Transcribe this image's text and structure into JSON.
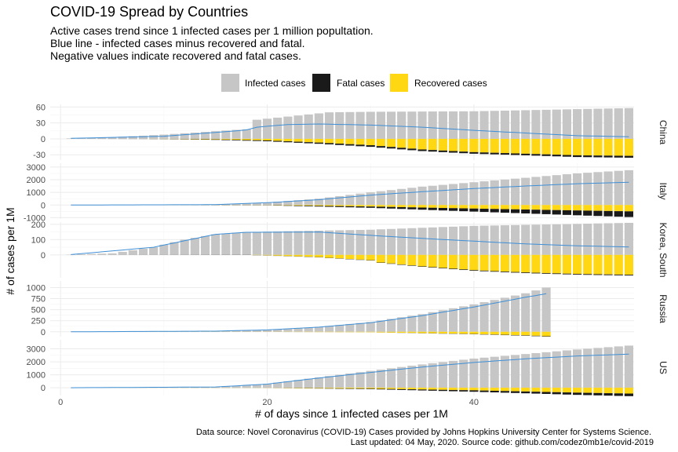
{
  "chart_data": {
    "type": "bar",
    "title": "COVID-19 Spread by Countries",
    "subtitle": [
      "Active cases trend since 1 infected cases per 1 million popultation.",
      "Blue line - infected cases minus recovered and fatal.",
      "Negative values indicate recovered and fatal cases."
    ],
    "xlabel": "# of days since 1 infected cases per 1M",
    "ylabel": "# of cases per 1M",
    "caption": [
      "Data source: Novel Coronavirus (COVID-19) Cases provided by Johns Hopkins University Center for Systems Science.",
      "Last updated: 04 May, 2020. Source code: github.com/codez0mb1e/covid-2019"
    ],
    "legend": {
      "position": "top",
      "entries": [
        {
          "name": "Infected cases",
          "color": "#c6c6c6"
        },
        {
          "name": "Fatal cases",
          "color": "#1a1a1a"
        },
        {
          "name": "Recovered cases",
          "color": "#ffd712"
        }
      ]
    },
    "line_color": "#3e8fd6",
    "x_ticks": [
      0,
      20,
      40
    ],
    "xlim": [
      -1,
      55.5
    ],
    "grid": true,
    "panels": [
      {
        "name": "China",
        "days": 55,
        "ylim": [
          -40,
          65
        ],
        "y_ticks": [
          -30,
          0,
          30,
          60
        ],
        "infected_points": [
          [
            1,
            1
          ],
          [
            5,
            3
          ],
          [
            10,
            8
          ],
          [
            17,
            17
          ],
          [
            18,
            18
          ],
          [
            19,
            36
          ],
          [
            26,
            50
          ],
          [
            30,
            51
          ],
          [
            40,
            52
          ],
          [
            55,
            58
          ]
        ],
        "fatal_points": [
          [
            1,
            0
          ],
          [
            10,
            -0.3
          ],
          [
            20,
            -1.5
          ],
          [
            30,
            -3
          ],
          [
            45,
            -3
          ],
          [
            55,
            -3.5
          ]
        ],
        "recovered_points": [
          [
            1,
            0
          ],
          [
            8,
            0
          ],
          [
            15,
            -1
          ],
          [
            20,
            -3
          ],
          [
            25,
            -7
          ],
          [
            30,
            -12
          ],
          [
            35,
            -20
          ],
          [
            40,
            -25
          ],
          [
            45,
            -28
          ],
          [
            50,
            -31
          ],
          [
            55,
            -32
          ]
        ],
        "active_points": [
          [
            1,
            1
          ],
          [
            10,
            5
          ],
          [
            17,
            15
          ],
          [
            18,
            17
          ],
          [
            19,
            22
          ],
          [
            22,
            27
          ],
          [
            25,
            28
          ],
          [
            30,
            26
          ],
          [
            35,
            22
          ],
          [
            40,
            16
          ],
          [
            45,
            11
          ],
          [
            50,
            6
          ],
          [
            55,
            4
          ]
        ]
      },
      {
        "name": "Italy",
        "days": 55,
        "ylim": [
          -1100,
          3300
        ],
        "y_ticks": [
          -1000,
          0,
          1000,
          2000,
          3000
        ],
        "infected_points": [
          [
            1,
            0.05
          ],
          [
            10,
            5
          ],
          [
            15,
            30
          ],
          [
            20,
            200
          ],
          [
            25,
            500
          ],
          [
            30,
            1000
          ],
          [
            35,
            1450
          ],
          [
            40,
            1800
          ],
          [
            45,
            2150
          ],
          [
            50,
            2500
          ],
          [
            55,
            2750
          ]
        ],
        "fatal_points": [
          [
            1,
            0
          ],
          [
            20,
            -15
          ],
          [
            30,
            -100
          ],
          [
            40,
            -240
          ],
          [
            50,
            -380
          ],
          [
            55,
            -450
          ]
        ],
        "recovered_points": [
          [
            1,
            0
          ],
          [
            20,
            -10
          ],
          [
            30,
            -120
          ],
          [
            40,
            -280
          ],
          [
            50,
            -430
          ],
          [
            55,
            -500
          ]
        ],
        "active_points": [
          [
            1,
            0.05
          ],
          [
            15,
            28
          ],
          [
            20,
            180
          ],
          [
            25,
            420
          ],
          [
            30,
            780
          ],
          [
            35,
            1050
          ],
          [
            40,
            1300
          ],
          [
            45,
            1500
          ],
          [
            50,
            1680
          ],
          [
            55,
            1800
          ]
        ]
      },
      {
        "name": "Korea, South",
        "days": 55,
        "ylim": [
          -150,
          215
        ],
        "y_ticks": [
          0,
          100,
          200
        ],
        "infected_points": [
          [
            1,
            2
          ],
          [
            5,
            10
          ],
          [
            9,
            50
          ],
          [
            12,
            100
          ],
          [
            15,
            135
          ],
          [
            18,
            150
          ],
          [
            30,
            165
          ],
          [
            40,
            190
          ],
          [
            55,
            210
          ]
        ],
        "fatal_points": [
          [
            1,
            0
          ],
          [
            20,
            -1
          ],
          [
            30,
            -2
          ],
          [
            40,
            -4
          ],
          [
            50,
            -4.5
          ],
          [
            55,
            -5
          ]
        ],
        "recovered_points": [
          [
            1,
            0
          ],
          [
            18,
            0
          ],
          [
            20,
            -3
          ],
          [
            25,
            -15
          ],
          [
            30,
            -35
          ],
          [
            31,
            -50
          ],
          [
            35,
            -75
          ],
          [
            40,
            -100
          ],
          [
            45,
            -115
          ],
          [
            50,
            -125
          ],
          [
            55,
            -130
          ]
        ],
        "active_points": [
          [
            1,
            2
          ],
          [
            9,
            50
          ],
          [
            15,
            135
          ],
          [
            18,
            148
          ],
          [
            25,
            150
          ],
          [
            30,
            128
          ],
          [
            35,
            108
          ],
          [
            40,
            90
          ],
          [
            45,
            72
          ],
          [
            50,
            60
          ],
          [
            55,
            52
          ]
        ]
      },
      {
        "name": "Russia",
        "days": 47,
        "ylim": [
          -110,
          1150
        ],
        "y_ticks": [
          0,
          250,
          500,
          750,
          1000
        ],
        "infected_points": [
          [
            1,
            0.1
          ],
          [
            15,
            15
          ],
          [
            20,
            45
          ],
          [
            25,
            110
          ],
          [
            30,
            220
          ],
          [
            35,
            400
          ],
          [
            40,
            620
          ],
          [
            45,
            870
          ],
          [
            47,
            1000
          ]
        ],
        "fatal_points": [
          [
            1,
            0
          ],
          [
            30,
            -1
          ],
          [
            40,
            -6
          ],
          [
            47,
            -10
          ]
        ],
        "recovered_points": [
          [
            1,
            0
          ],
          [
            20,
            -2
          ],
          [
            30,
            -10
          ],
          [
            40,
            -50
          ],
          [
            45,
            -80
          ],
          [
            47,
            -100
          ]
        ],
        "active_points": [
          [
            1,
            0.1
          ],
          [
            15,
            15
          ],
          [
            20,
            43
          ],
          [
            25,
            105
          ],
          [
            30,
            205
          ],
          [
            35,
            365
          ],
          [
            40,
            560
          ],
          [
            45,
            780
          ],
          [
            47,
            860
          ]
        ]
      },
      {
        "name": "US",
        "days": 55,
        "ylim": [
          -600,
          3700
        ],
        "y_ticks": [
          0,
          1000,
          2000,
          3000
        ],
        "infected_points": [
          [
            1,
            1
          ],
          [
            10,
            10
          ],
          [
            15,
            60
          ],
          [
            20,
            300
          ],
          [
            25,
            800
          ],
          [
            30,
            1300
          ],
          [
            35,
            1800
          ],
          [
            40,
            2250
          ],
          [
            45,
            2600
          ],
          [
            50,
            2950
          ],
          [
            55,
            3250
          ]
        ],
        "fatal_points": [
          [
            1,
            0
          ],
          [
            20,
            -5
          ],
          [
            30,
            -40
          ],
          [
            40,
            -110
          ],
          [
            50,
            -170
          ],
          [
            55,
            -200
          ]
        ],
        "recovered_points": [
          [
            1,
            0
          ],
          [
            20,
            -10
          ],
          [
            30,
            -70
          ],
          [
            40,
            -200
          ],
          [
            50,
            -380
          ],
          [
            55,
            -450
          ]
        ],
        "active_points": [
          [
            1,
            1
          ],
          [
            15,
            58
          ],
          [
            20,
            280
          ],
          [
            25,
            750
          ],
          [
            30,
            1180
          ],
          [
            35,
            1600
          ],
          [
            40,
            1950
          ],
          [
            45,
            2230
          ],
          [
            50,
            2450
          ],
          [
            55,
            2600
          ]
        ]
      }
    ]
  }
}
